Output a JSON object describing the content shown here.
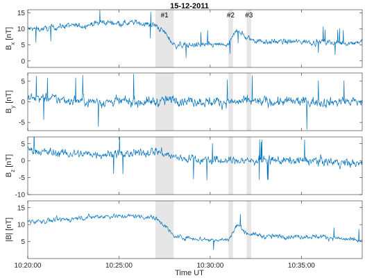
{
  "colors": {
    "line": "#0072BD",
    "shade": "#E6E6E6",
    "axis": "#262626"
  },
  "chart_data": {
    "type": "line",
    "title": "15-12-2011",
    "xlabel": "Time UT",
    "xlim": [
      "10:20:00",
      "10:38:20"
    ],
    "x_ticks": [
      "10:20:00",
      "10:25:00",
      "10:30:00",
      "10:35:00"
    ],
    "events": [
      {
        "label": "#1",
        "start": "10:27:00",
        "end": "10:28:00"
      },
      {
        "label": "#2",
        "start": "10:31:00",
        "end": "10:31:15"
      },
      {
        "label": "#3",
        "start": "10:32:00",
        "end": "10:32:15"
      }
    ],
    "panels": [
      {
        "ylabel_main": "B",
        "ylabel_sub": "x",
        "ylabel_unit": " [nT]",
        "ylim": [
          -2,
          16
        ],
        "yticks": [
          0,
          5,
          10,
          15
        ],
        "series": [
          {
            "x": [
              "10:20:00",
              "10:21:00",
              "10:22:00",
              "10:23:00",
              "10:24:00",
              "10:25:00",
              "10:26:00",
              "10:27:00",
              "10:27:30",
              "10:28:00",
              "10:29:00",
              "10:30:00",
              "10:31:00",
              "10:31:30",
              "10:32:00",
              "10:33:00",
              "10:34:00",
              "10:35:00",
              "10:36:00",
              "10:37:00",
              "10:38:20"
            ],
            "y": [
              10,
              10,
              11,
              11,
              12,
              12,
              12,
              11,
              9,
              5,
              5,
              5,
              5,
              10,
              7,
              6,
              6,
              6,
              6,
              5.5,
              6
            ],
            "noise": 1.2
          }
        ]
      },
      {
        "ylabel_main": "B",
        "ylabel_sub": "y",
        "ylabel_unit": " [nT]",
        "ylim": [
          -7,
          7
        ],
        "yticks": [
          -5,
          0,
          5
        ],
        "series": [
          {
            "x": [
              "10:20:00",
              "10:22:00",
              "10:24:00",
              "10:26:00",
              "10:27:00",
              "10:28:00",
              "10:30:00",
              "10:31:00",
              "10:32:00",
              "10:34:00",
              "10:36:00",
              "10:38:20"
            ],
            "y": [
              1,
              0.5,
              0,
              0,
              0,
              0.5,
              0,
              0,
              0,
              0,
              0,
              0
            ],
            "noise": 1.6
          }
        ]
      },
      {
        "ylabel_main": "B",
        "ylabel_sub": "z",
        "ylabel_unit": " [nT]",
        "ylim": [
          -10,
          7
        ],
        "yticks": [
          -10,
          -5,
          0,
          5
        ],
        "series": [
          {
            "x": [
              "10:20:00",
              "10:22:00",
              "10:24:00",
              "10:26:00",
              "10:27:00",
              "10:28:00",
              "10:30:00",
              "10:31:00",
              "10:32:00",
              "10:34:00",
              "10:36:00",
              "10:38:20"
            ],
            "y": [
              3,
              2,
              2,
              2,
              3,
              1,
              0,
              0,
              0,
              0,
              0,
              -1
            ],
            "noise": 1.7
          }
        ]
      },
      {
        "ylabel_main": "|B|",
        "ylabel_sub": "",
        "ylabel_unit": " [nT]",
        "ylim": [
          0,
          17
        ],
        "yticks": [
          5,
          10,
          15
        ],
        "series": [
          {
            "x": [
              "10:20:00",
              "10:21:00",
              "10:22:00",
              "10:23:00",
              "10:24:00",
              "10:25:00",
              "10:26:00",
              "10:27:00",
              "10:27:30",
              "10:28:00",
              "10:29:00",
              "10:30:00",
              "10:31:00",
              "10:31:30",
              "10:32:00",
              "10:33:00",
              "10:34:00",
              "10:35:00",
              "10:36:00",
              "10:37:00",
              "10:38:20"
            ],
            "y": [
              11,
              11,
              11.5,
              12,
              12.5,
              12.5,
              12.5,
              12,
              10,
              6.5,
              6,
              5.5,
              5.5,
              10,
              7.5,
              6.5,
              6.5,
              6.5,
              6.5,
              6,
              5
            ],
            "noise": 0.9
          }
        ]
      }
    ]
  }
}
